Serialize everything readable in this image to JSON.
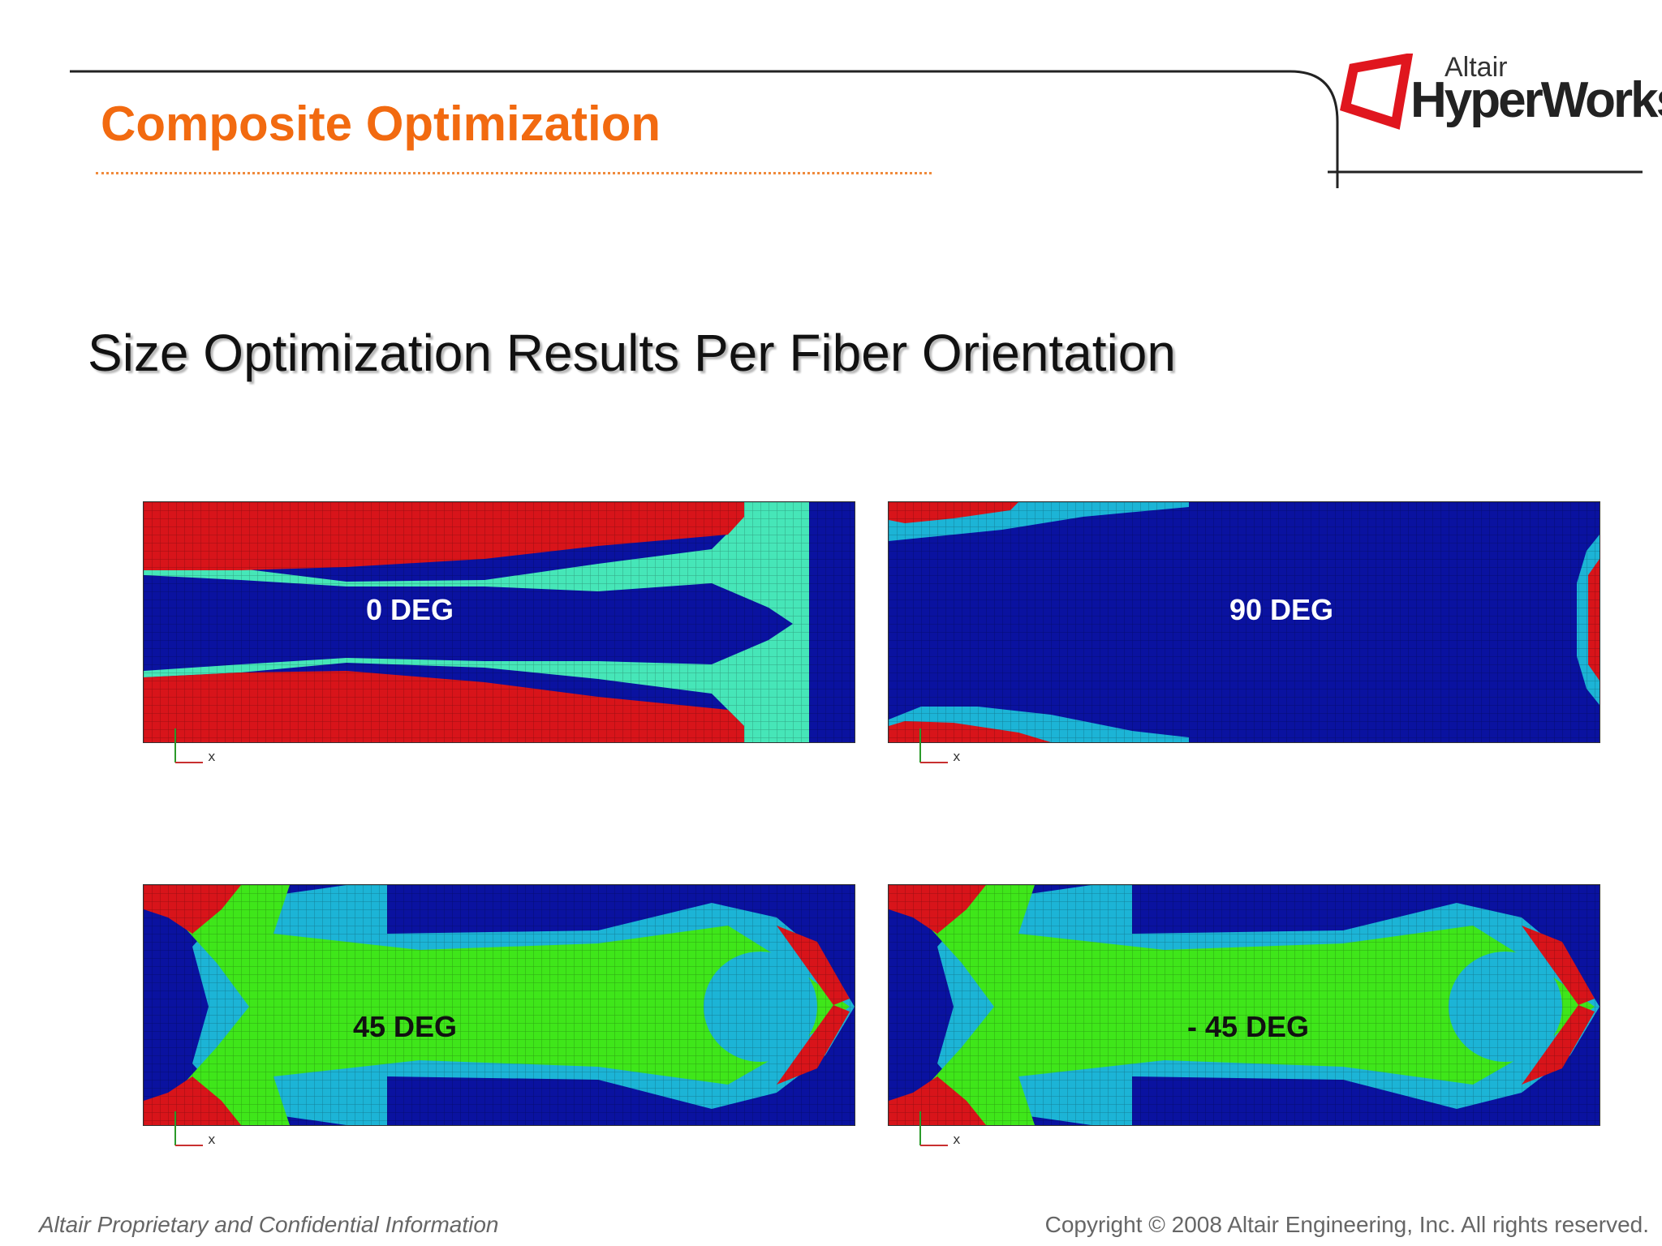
{
  "header": {
    "title": "Composite Optimization",
    "title_color": "#f26a10"
  },
  "logo": {
    "brand_small": "Altair",
    "brand_large": "HyperWorks",
    "mark_color": "#e0161e"
  },
  "subtitle": "Size Optimization Results Per Fiber Orientation",
  "palette": {
    "background_blue": "#0a12a0",
    "red": "#d8141a",
    "aqua": "#46e6b8",
    "cyan": "#1cb4d6",
    "green": "#3fe61a"
  },
  "panels": [
    {
      "label": "0 DEG",
      "axis_label": "x"
    },
    {
      "label": "90 DEG",
      "axis_label": "x"
    },
    {
      "label": "45 DEG",
      "axis_label": "x"
    },
    {
      "label": "- 45 DEG",
      "axis_label": "x"
    }
  ],
  "footer": {
    "left": "Altair Proprietary and Confidential Information",
    "right": "Copyright © 2008 Altair Engineering, Inc. All rights reserved."
  }
}
